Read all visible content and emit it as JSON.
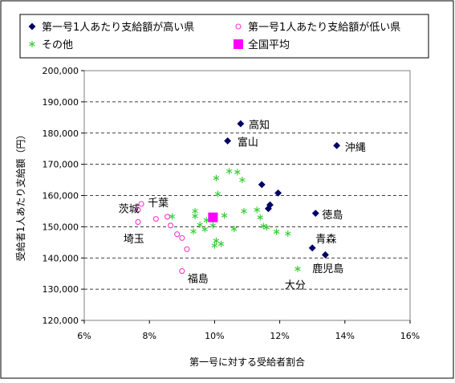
{
  "chart_data": {
    "type": "scatter",
    "title": "",
    "xlabel": "第一号に対する受給者割合",
    "ylabel": "受給者1人あたり支給額（円）",
    "xlim": [
      0.06,
      0.16
    ],
    "ylim": [
      120000,
      200000
    ],
    "x_ticks": [
      {
        "value": 0.06,
        "label": "6%"
      },
      {
        "value": 0.08,
        "label": "8%"
      },
      {
        "value": 0.1,
        "label": "10%"
      },
      {
        "value": 0.12,
        "label": "12%"
      },
      {
        "value": 0.14,
        "label": "14%"
      },
      {
        "value": 0.16,
        "label": "16%"
      }
    ],
    "y_ticks": [
      {
        "value": 120000,
        "label": "120,000"
      },
      {
        "value": 130000,
        "label": "130,000"
      },
      {
        "value": 140000,
        "label": "140,000"
      },
      {
        "value": 150000,
        "label": "150,000"
      },
      {
        "value": 160000,
        "label": "160,000"
      },
      {
        "value": 170000,
        "label": "170,000"
      },
      {
        "value": 180000,
        "label": "180,000"
      },
      {
        "value": 190000,
        "label": "190,000"
      },
      {
        "value": 200000,
        "label": "200,000"
      }
    ],
    "grid": "horizontal dashed",
    "legend_position": "top",
    "series": [
      {
        "name": "第一号1人あたり支給額が高い県",
        "marker": "diamond",
        "color": "#000066",
        "points": [
          {
            "x": 0.108,
            "y": 183000
          },
          {
            "x": 0.104,
            "y": 177500
          },
          {
            "x": 0.1375,
            "y": 176000
          },
          {
            "x": 0.1145,
            "y": 163500
          },
          {
            "x": 0.1195,
            "y": 160800
          },
          {
            "x": 0.117,
            "y": 157000
          },
          {
            "x": 0.1165,
            "y": 155800
          },
          {
            "x": 0.131,
            "y": 154300
          },
          {
            "x": 0.13,
            "y": 143200
          },
          {
            "x": 0.134,
            "y": 141000
          }
        ]
      },
      {
        "name": "第一号1人あたり支給額が低い県",
        "marker": "circle-open",
        "color": "#ff33cc",
        "points": [
          {
            "x": 0.0775,
            "y": 157300
          },
          {
            "x": 0.0765,
            "y": 155400
          },
          {
            "x": 0.082,
            "y": 152500
          },
          {
            "x": 0.0855,
            "y": 153200
          },
          {
            "x": 0.0765,
            "y": 151500
          },
          {
            "x": 0.0865,
            "y": 150400
          },
          {
            "x": 0.0885,
            "y": 147600
          },
          {
            "x": 0.09,
            "y": 146400
          },
          {
            "x": 0.0915,
            "y": 142800
          },
          {
            "x": 0.09,
            "y": 135800
          }
        ]
      },
      {
        "name": "その他",
        "marker": "asterisk",
        "color": "#33cc33",
        "points": [
          {
            "x": 0.087,
            "y": 153300
          },
          {
            "x": 0.094,
            "y": 155000
          },
          {
            "x": 0.094,
            "y": 153400
          },
          {
            "x": 0.097,
            "y": 149200
          },
          {
            "x": 0.0975,
            "y": 152100
          },
          {
            "x": 0.0935,
            "y": 148500
          },
          {
            "x": 0.0955,
            "y": 150600
          },
          {
            "x": 0.0995,
            "y": 150400
          },
          {
            "x": 0.1005,
            "y": 165600
          },
          {
            "x": 0.101,
            "y": 160500
          },
          {
            "x": 0.103,
            "y": 153600
          },
          {
            "x": 0.1045,
            "y": 167800
          },
          {
            "x": 0.107,
            "y": 167500
          },
          {
            "x": 0.1085,
            "y": 165000
          },
          {
            "x": 0.109,
            "y": 155000
          },
          {
            "x": 0.1,
            "y": 144000
          },
          {
            "x": 0.1005,
            "y": 145500
          },
          {
            "x": 0.102,
            "y": 144500
          },
          {
            "x": 0.106,
            "y": 149300
          },
          {
            "x": 0.113,
            "y": 155400
          },
          {
            "x": 0.114,
            "y": 153000
          },
          {
            "x": 0.115,
            "y": 150200
          },
          {
            "x": 0.116,
            "y": 149800
          },
          {
            "x": 0.119,
            "y": 148400
          },
          {
            "x": 0.1225,
            "y": 147800
          },
          {
            "x": 0.1255,
            "y": 136500
          }
        ]
      },
      {
        "name": "全国平均",
        "marker": "square",
        "color": "#ff00ff",
        "points": [
          {
            "x": 0.0995,
            "y": 153000
          }
        ]
      }
    ],
    "annotations": [
      {
        "text": "高知",
        "x": 0.1105,
        "y": 182800
      },
      {
        "text": "富山",
        "x": 0.107,
        "y": 177200
      },
      {
        "text": "沖縄",
        "x": 0.14,
        "y": 175600
      },
      {
        "text": "徳島",
        "x": 0.133,
        "y": 154000
      },
      {
        "text": "青森",
        "x": 0.131,
        "y": 146300
      },
      {
        "text": "鹿児島",
        "x": 0.13,
        "y": 136700
      },
      {
        "text": "大分",
        "x": 0.1215,
        "y": 131500
      },
      {
        "text": "茨城",
        "x": 0.0705,
        "y": 155900
      },
      {
        "text": "千葉",
        "x": 0.0795,
        "y": 157800
      },
      {
        "text": "埼玉",
        "x": 0.072,
        "y": 146300
      },
      {
        "text": "福島",
        "x": 0.0917,
        "y": 133500
      }
    ]
  }
}
